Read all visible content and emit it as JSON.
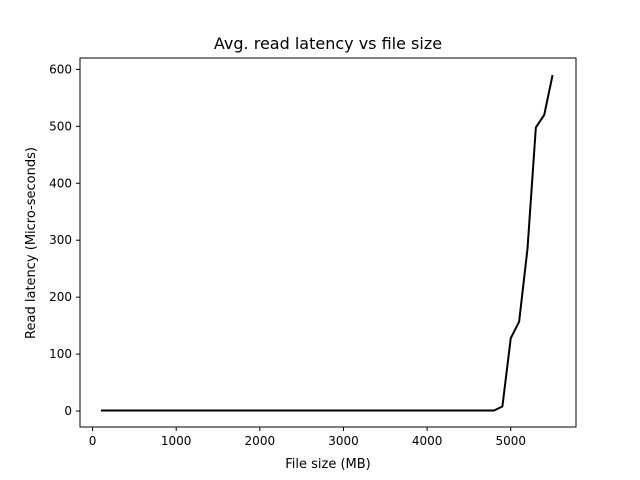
{
  "chart_data": {
    "type": "line",
    "title": "Avg. read latency vs file size",
    "xlabel": "File size (MB)",
    "ylabel": "Read latency (Micro-seconds)",
    "xlim": [
      -150,
      5780
    ],
    "ylim": [
      -28,
      620
    ],
    "xticks": [
      0,
      1000,
      2000,
      3000,
      4000,
      5000
    ],
    "yticks": [
      0,
      100,
      200,
      300,
      400,
      500,
      600
    ],
    "grid": false,
    "legend": "none",
    "line_color": "#000000",
    "series": [
      {
        "x": [
          100,
          200,
          300,
          400,
          500,
          600,
          700,
          800,
          900,
          1000,
          1100,
          1200,
          1300,
          1400,
          1500,
          1600,
          1700,
          1800,
          1900,
          2000,
          2100,
          2200,
          2300,
          2400,
          2500,
          2600,
          2700,
          2800,
          2900,
          3000,
          3100,
          3200,
          3300,
          3400,
          3500,
          3600,
          3700,
          3800,
          3900,
          4000,
          4100,
          4200,
          4300,
          4400,
          4500,
          4600,
          4700,
          4800,
          4900,
          5000,
          5100,
          5200,
          5300,
          5400,
          5500
        ],
        "values": [
          1,
          1,
          1,
          1,
          1,
          1,
          1,
          1,
          1,
          1,
          1,
          1,
          1,
          1,
          1,
          1,
          1,
          1,
          1,
          1,
          1,
          1,
          1,
          1,
          1,
          1,
          1,
          1,
          1,
          1,
          1,
          1,
          1,
          1,
          1,
          1,
          1,
          1,
          1,
          1,
          1,
          1,
          1,
          1,
          1,
          1,
          1,
          1,
          8,
          128,
          157,
          285,
          498,
          520,
          590
        ]
      }
    ]
  }
}
